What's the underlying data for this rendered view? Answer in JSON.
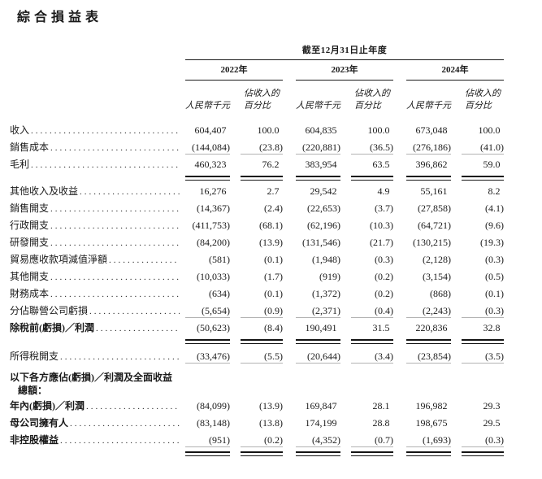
{
  "title": "綜合損益表",
  "table": {
    "period_header": "截至12月31日止年度",
    "years": [
      "2022年",
      "2023年",
      "2024年"
    ],
    "col_headers": {
      "amount": "人民幣千元",
      "pct_line1": "佔收入的",
      "pct_line2": "百分比"
    },
    "rows": [
      {
        "label": "收入",
        "values": [
          "604,407",
          "100.0",
          "604,835",
          "100.0",
          "673,048",
          "100.0"
        ]
      },
      {
        "label": "銷售成本",
        "values": [
          "(144,084)",
          "(23.8)",
          "(220,881)",
          "(36.5)",
          "(276,186)",
          "(41.0)"
        ],
        "rule": "gray"
      },
      {
        "label": "毛利",
        "values": [
          "460,323",
          "76.2",
          "383,954",
          "63.5",
          "396,862",
          "59.0"
        ],
        "rule": "double",
        "gap_after": 4
      },
      {
        "label": "其他收入及收益",
        "values": [
          "16,276",
          "2.7",
          "29,542",
          "4.9",
          "55,161",
          "8.2"
        ]
      },
      {
        "label": "銷售開支",
        "values": [
          "(14,367)",
          "(2.4)",
          "(22,653)",
          "(3.7)",
          "(27,858)",
          "(4.1)"
        ]
      },
      {
        "label": "行政開支",
        "values": [
          "(411,753)",
          "(68.1)",
          "(62,196)",
          "(10.3)",
          "(64,721)",
          "(9.6)"
        ]
      },
      {
        "label": "研發開支",
        "values": [
          "(84,200)",
          "(13.9)",
          "(131,546)",
          "(21.7)",
          "(130,215)",
          "(19.3)"
        ]
      },
      {
        "label": "貿易應收款項減值淨額",
        "values": [
          "(581)",
          "(0.1)",
          "(1,948)",
          "(0.3)",
          "(2,128)",
          "(0.3)"
        ]
      },
      {
        "label": "其他開支",
        "values": [
          "(10,033)",
          "(1.7)",
          "(919)",
          "(0.2)",
          "(3,154)",
          "(0.5)"
        ]
      },
      {
        "label": "財務成本",
        "values": [
          "(634)",
          "(0.1)",
          "(1,372)",
          "(0.2)",
          "(868)",
          "(0.1)"
        ]
      },
      {
        "label": "分佔聯營公司虧損",
        "values": [
          "(5,654)",
          "(0.9)",
          "(2,371)",
          "(0.4)",
          "(2,243)",
          "(0.3)"
        ],
        "rule": "gray"
      },
      {
        "label": "除稅前(虧損)／利潤",
        "bold": true,
        "values": [
          "(50,623)",
          "(8.4)",
          "190,491",
          "31.5",
          "220,836",
          "32.8"
        ],
        "rule": "double",
        "gap_after": 6
      },
      {
        "label": "所得稅開支",
        "values": [
          "(33,476)",
          "(5.5)",
          "(20,644)",
          "(3.4)",
          "(23,854)",
          "(3.5)"
        ],
        "rule": "gray",
        "gap_after": 2
      },
      {
        "type": "section",
        "bold": true,
        "label_line1": "以下各方應佔(虧損)／利潤及全面收益",
        "label_line2": "總額："
      },
      {
        "label": "年內(虧損)／利潤",
        "bold": true,
        "values": [
          "(84,099)",
          "(13.9)",
          "169,847",
          "28.1",
          "196,982",
          "29.3"
        ]
      },
      {
        "label": "母公司擁有人",
        "bold": true,
        "values": [
          "(83,148)",
          "(13.8)",
          "174,199",
          "28.8",
          "198,675",
          "29.5"
        ]
      },
      {
        "label": "非控股權益",
        "bold": true,
        "values": [
          "(951)",
          "(0.2)",
          "(4,352)",
          "(0.7)",
          "(1,693)",
          "(0.3)"
        ],
        "rule": "gray_then_double"
      }
    ]
  }
}
